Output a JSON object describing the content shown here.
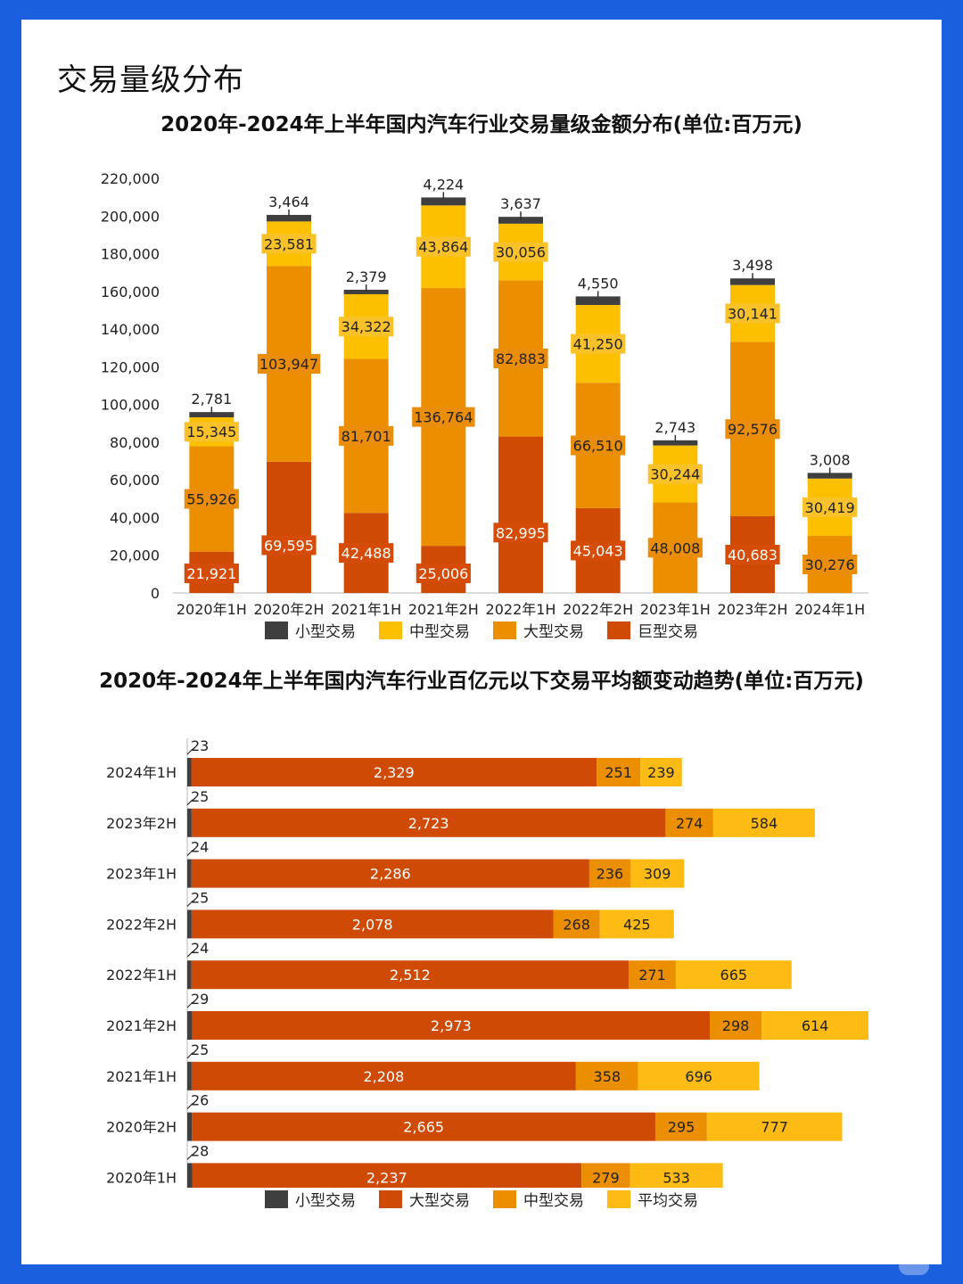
{
  "page": {
    "title": "交易量级分布"
  },
  "colors": {
    "small": "#3f3f3f",
    "medium": "#fdc000",
    "large": "#eb8f00",
    "huge": "#cf4b05",
    "average": "#fdbb13",
    "label_bg_medium": "#f9c22b",
    "label_bg_large": "#e98d0b",
    "label_bg_huge": "#d44c07"
  },
  "chart_data": [
    {
      "type": "bar",
      "stacked": true,
      "title": "2020年-2024年上半年国内汽车行业交易量级金额分布(单位:百万元)",
      "categories": [
        "2020年1H",
        "2020年2H",
        "2021年1H",
        "2021年2H",
        "2022年1H",
        "2022年2H",
        "2023年1H",
        "2023年2H",
        "2024年1H"
      ],
      "series": [
        {
          "name": "巨型交易",
          "key": "huge",
          "values": [
            21921,
            69595,
            42488,
            25006,
            82995,
            45043,
            0,
            40683,
            0
          ]
        },
        {
          "name": "大型交易",
          "key": "large",
          "values": [
            55926,
            103947,
            81701,
            136764,
            82883,
            66510,
            48008,
            92576,
            30276
          ]
        },
        {
          "name": "中型交易",
          "key": "medium",
          "values": [
            15345,
            23581,
            34322,
            43864,
            30056,
            41250,
            30244,
            30141,
            30419
          ]
        },
        {
          "name": "小型交易",
          "key": "small",
          "values": [
            2781,
            3464,
            2379,
            4224,
            3637,
            4550,
            2743,
            3498,
            3008
          ]
        }
      ],
      "legend_order": [
        "小型交易",
        "中型交易",
        "大型交易",
        "巨型交易"
      ],
      "legend_keys": [
        "small",
        "medium",
        "large",
        "huge"
      ],
      "ylim": [
        0,
        220000
      ],
      "yticks": [
        0,
        20000,
        40000,
        60000,
        80000,
        100000,
        120000,
        140000,
        160000,
        180000,
        200000,
        220000
      ],
      "ytick_labels": [
        "0",
        "20,000",
        "40,000",
        "60,000",
        "80,000",
        "100,000",
        "120,000",
        "140,000",
        "160,000",
        "180,000",
        "200,000",
        "220,000"
      ],
      "legend_position": "bottom"
    },
    {
      "type": "bar",
      "orientation": "horizontal",
      "stacked": true,
      "title": "2020年-2024年上半年国内汽车行业百亿元以下交易平均额变动趋势(单位:百万元)",
      "categories": [
        "2024年1H",
        "2023年2H",
        "2023年1H",
        "2022年2H",
        "2022年1H",
        "2021年2H",
        "2021年1H",
        "2020年2H",
        "2020年1H"
      ],
      "series": [
        {
          "name": "小型交易",
          "key": "small",
          "values": [
            23,
            25,
            24,
            25,
            24,
            29,
            25,
            26,
            28
          ]
        },
        {
          "name": "大型交易",
          "key": "huge",
          "values": [
            2329,
            2723,
            2286,
            2078,
            2512,
            2973,
            2208,
            2665,
            2237
          ]
        },
        {
          "name": "中型交易",
          "key": "large",
          "values": [
            251,
            274,
            236,
            268,
            271,
            298,
            358,
            295,
            279
          ]
        },
        {
          "name": "平均交易",
          "key": "average",
          "values": [
            239,
            584,
            309,
            425,
            665,
            614,
            696,
            777,
            533
          ]
        }
      ],
      "legend_order": [
        "小型交易",
        "大型交易",
        "中型交易",
        "平均交易"
      ],
      "legend_keys": [
        "small",
        "huge",
        "large",
        "average"
      ],
      "legend_position": "bottom"
    }
  ]
}
